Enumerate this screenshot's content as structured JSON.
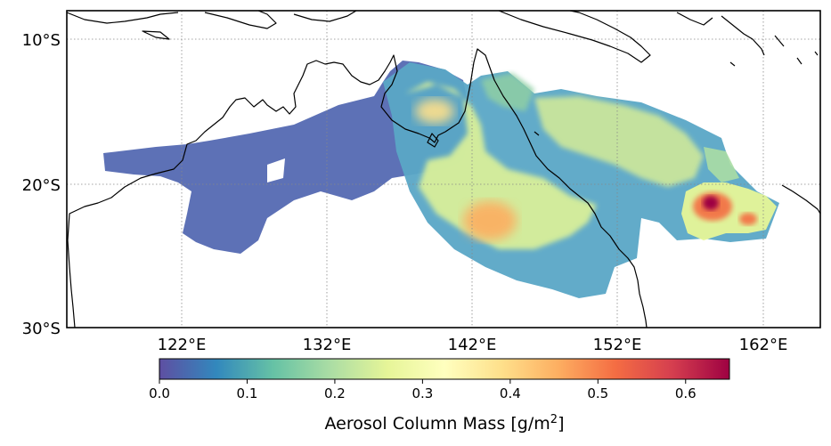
{
  "map": {
    "lat_labels": [
      "10°S",
      "20°S",
      "30°S"
    ],
    "lon_labels": [
      "122°E",
      "132°E",
      "142°E",
      "152°E",
      "162°E"
    ],
    "gridlines": true,
    "extent_lon": [
      114,
      168
    ],
    "extent_lat": [
      -30,
      -8
    ]
  },
  "colorbar": {
    "label_prefix": "Aerosol Column Mass [g/m",
    "label_exponent": "2",
    "label_suffix": "]",
    "tick_labels": [
      "0.0",
      "0.1",
      "0.2",
      "0.3",
      "0.4",
      "0.5",
      "0.6"
    ],
    "range": [
      0.0,
      0.65
    ],
    "colormap": [
      "#5e4fa2",
      "#3288bd",
      "#66c2a5",
      "#abdda4",
      "#e6f598",
      "#ffffbf",
      "#fee08b",
      "#fdae61",
      "#f46d43",
      "#d53e4f",
      "#9e0142"
    ]
  }
}
